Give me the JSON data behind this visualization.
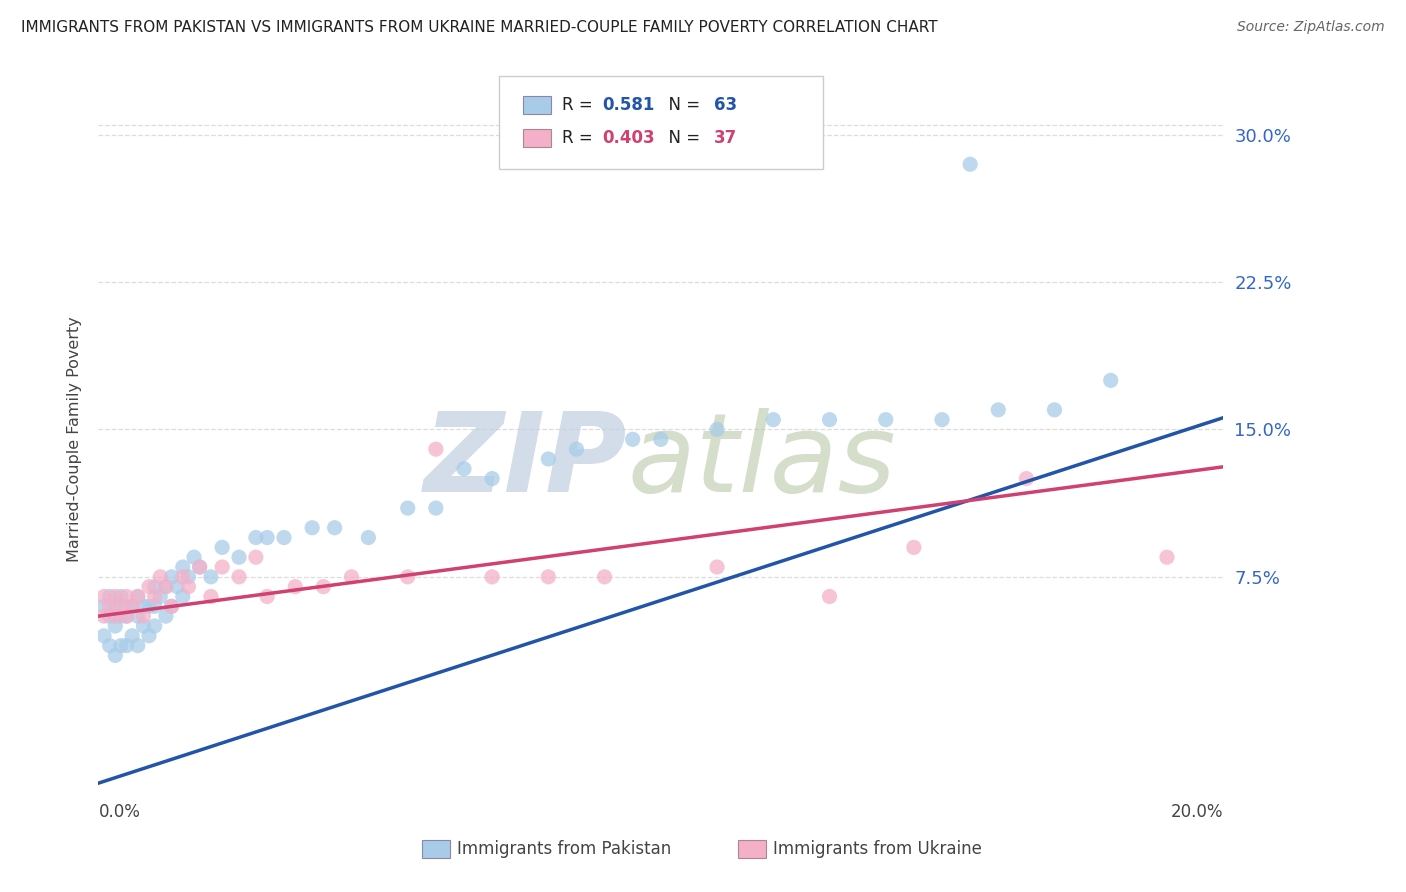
{
  "title": "IMMIGRANTS FROM PAKISTAN VS IMMIGRANTS FROM UKRAINE MARRIED-COUPLE FAMILY POVERTY CORRELATION CHART",
  "source": "Source: ZipAtlas.com",
  "ylabel": "Married-Couple Family Poverty",
  "pakistan_label": "Immigrants from Pakistan",
  "ukraine_label": "Immigrants from Ukraine",
  "ytick_vals": [
    0.075,
    0.15,
    0.225,
    0.3
  ],
  "ytick_labels": [
    "7.5%",
    "15.0%",
    "22.5%",
    "30.0%"
  ],
  "xlim": [
    0.0,
    0.2
  ],
  "ylim": [
    -0.04,
    0.33
  ],
  "pakistan_R": "0.581",
  "pakistan_N": "63",
  "ukraine_R": "0.403",
  "ukraine_N": "37",
  "pk_scatter_color": "#a8cce8",
  "uk_scatter_color": "#f4b0c8",
  "pk_line_color": "#2255aa",
  "uk_line_color": "#d04070",
  "dash_color": "#aaaaaa",
  "grid_color": "#dddddd",
  "bg_color": "#ffffff",
  "ytick_color": "#3366cc",
  "pk_line_intercept": -0.03,
  "pk_line_slope": 0.93,
  "uk_line_intercept": 0.055,
  "uk_line_slope": 0.38,
  "pk_scatter_x": [
    0.001,
    0.001,
    0.002,
    0.002,
    0.002,
    0.003,
    0.003,
    0.003,
    0.004,
    0.004,
    0.004,
    0.005,
    0.005,
    0.005,
    0.006,
    0.006,
    0.007,
    0.007,
    0.007,
    0.008,
    0.008,
    0.009,
    0.009,
    0.01,
    0.01,
    0.01,
    0.011,
    0.012,
    0.012,
    0.013,
    0.013,
    0.014,
    0.015,
    0.015,
    0.016,
    0.017,
    0.018,
    0.02,
    0.022,
    0.025,
    0.028,
    0.03,
    0.033,
    0.038,
    0.042,
    0.048,
    0.055,
    0.06,
    0.065,
    0.07,
    0.08,
    0.085,
    0.095,
    0.1,
    0.11,
    0.12,
    0.13,
    0.14,
    0.15,
    0.16,
    0.17,
    0.18,
    0.155
  ],
  "pk_scatter_y": [
    0.045,
    0.06,
    0.04,
    0.055,
    0.065,
    0.035,
    0.05,
    0.06,
    0.04,
    0.055,
    0.065,
    0.04,
    0.055,
    0.06,
    0.045,
    0.06,
    0.04,
    0.055,
    0.065,
    0.05,
    0.06,
    0.045,
    0.06,
    0.05,
    0.06,
    0.07,
    0.065,
    0.055,
    0.07,
    0.06,
    0.075,
    0.07,
    0.065,
    0.08,
    0.075,
    0.085,
    0.08,
    0.075,
    0.09,
    0.085,
    0.095,
    0.095,
    0.095,
    0.1,
    0.1,
    0.095,
    0.11,
    0.11,
    0.13,
    0.125,
    0.135,
    0.14,
    0.145,
    0.145,
    0.15,
    0.155,
    0.155,
    0.155,
    0.155,
    0.16,
    0.16,
    0.175,
    0.285
  ],
  "uk_scatter_x": [
    0.001,
    0.001,
    0.002,
    0.003,
    0.003,
    0.004,
    0.005,
    0.005,
    0.006,
    0.007,
    0.008,
    0.009,
    0.01,
    0.011,
    0.012,
    0.013,
    0.015,
    0.016,
    0.018,
    0.02,
    0.022,
    0.025,
    0.028,
    0.03,
    0.035,
    0.04,
    0.045,
    0.055,
    0.06,
    0.07,
    0.08,
    0.09,
    0.11,
    0.13,
    0.145,
    0.165,
    0.19
  ],
  "uk_scatter_y": [
    0.055,
    0.065,
    0.06,
    0.055,
    0.065,
    0.06,
    0.055,
    0.065,
    0.06,
    0.065,
    0.055,
    0.07,
    0.065,
    0.075,
    0.07,
    0.06,
    0.075,
    0.07,
    0.08,
    0.065,
    0.08,
    0.075,
    0.085,
    0.065,
    0.07,
    0.07,
    0.075,
    0.075,
    0.14,
    0.075,
    0.075,
    0.075,
    0.08,
    0.065,
    0.09,
    0.125,
    0.085
  ]
}
